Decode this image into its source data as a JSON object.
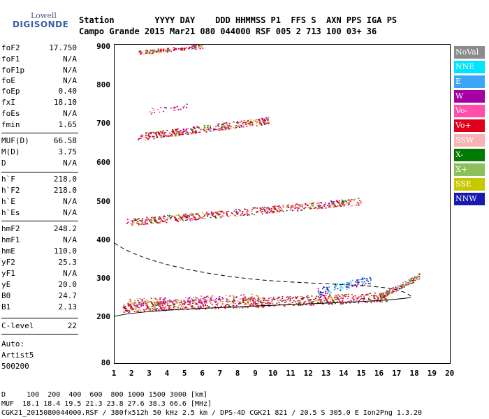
{
  "logo": {
    "line1": "Lowell",
    "line2": "DIGISONDE"
  },
  "header": {
    "line1": "Station        YYYY DAY    DDD HHMMSS P1  FFS S  AXN PPS IGA PS",
    "line2": "Campo Grande 2015 Mar21 080 044000 RSF 005 2 713 100 03+ 36"
  },
  "params": [
    {
      "key": "foF2",
      "value": "17.750"
    },
    {
      "key": "foF1",
      "value": "N/A"
    },
    {
      "key": "foF1p",
      "value": "N/A"
    },
    {
      "key": "foE",
      "value": "N/A"
    },
    {
      "key": "foEp",
      "value": "0.40"
    },
    {
      "key": "fxI",
      "value": "18.10"
    },
    {
      "key": "foEs",
      "value": "N/A"
    },
    {
      "key": "fmin",
      "value": "1.65"
    },
    {
      "key": "MUF(D)",
      "value": "66.58"
    },
    {
      "key": "M(D)",
      "value": "3.75"
    },
    {
      "key": "D",
      "value": "N/A"
    },
    {
      "key": "h`F",
      "value": "218.0"
    },
    {
      "key": "h`F2",
      "value": "218.0"
    },
    {
      "key": "h`E",
      "value": "N/A"
    },
    {
      "key": "h`Es",
      "value": "N/A"
    },
    {
      "key": "hmF2",
      "value": "248.2"
    },
    {
      "key": "hmF1",
      "value": "N/A"
    },
    {
      "key": "hmE",
      "value": "110.0"
    },
    {
      "key": "yF2",
      "value": "25.3"
    },
    {
      "key": "yF1",
      "value": "N/A"
    },
    {
      "key": "yE",
      "value": "20.0"
    },
    {
      "key": "B0",
      "value": "24.7"
    },
    {
      "key": "B1",
      "value": "2.13"
    },
    {
      "key": "C-level",
      "value": "22"
    }
  ],
  "auto": {
    "line1": "Auto:",
    "line2": "Artist5",
    "line3": "500200"
  },
  "yaxis": {
    "ticks": [
      "900",
      "800",
      "700",
      "600",
      "500",
      "400",
      "300",
      "200",
      "80"
    ]
  },
  "xaxis": {
    "ticks": [
      "1",
      "2",
      "3",
      "4",
      "5",
      "6",
      "7",
      "8",
      "9",
      "10",
      "11",
      "12",
      "13",
      "14",
      "15",
      "16",
      "17",
      "18",
      "19",
      "20"
    ]
  },
  "legend": [
    {
      "label": "NoVal",
      "color": "#8c8c8c"
    },
    {
      "label": "NNE",
      "color": "#00e5ff"
    },
    {
      "label": "E",
      "color": "#3da5f5"
    },
    {
      "label": "W",
      "color": "#a400a4"
    },
    {
      "label": "Vo-",
      "color": "#ff4fa8"
    },
    {
      "label": "Vo+",
      "color": "#e0001a"
    },
    {
      "label": "SSW",
      "color": "#f7b3b3"
    },
    {
      "label": "X-",
      "color": "#007a00"
    },
    {
      "label": "X+",
      "color": "#8cc05a"
    },
    {
      "label": "SSE",
      "color": "#c8c800"
    },
    {
      "label": "NNW",
      "color": "#1a1ab0"
    }
  ],
  "footer": {
    "dist": "D     100  200  400  600  800 1000 1500 3000 [km]",
    "muf": "MUF  18.1 18.4 19.5 21.3 23.8 27.6 38.3 66.6 [MHz]",
    "file": "CGK21_2015080044000.RSF / 380fx512h 50 kHz 2.5 km / DPS-4D CGK21 821 / 20.5 S 305.0 E Ion2Png 1.3.20"
  }
}
